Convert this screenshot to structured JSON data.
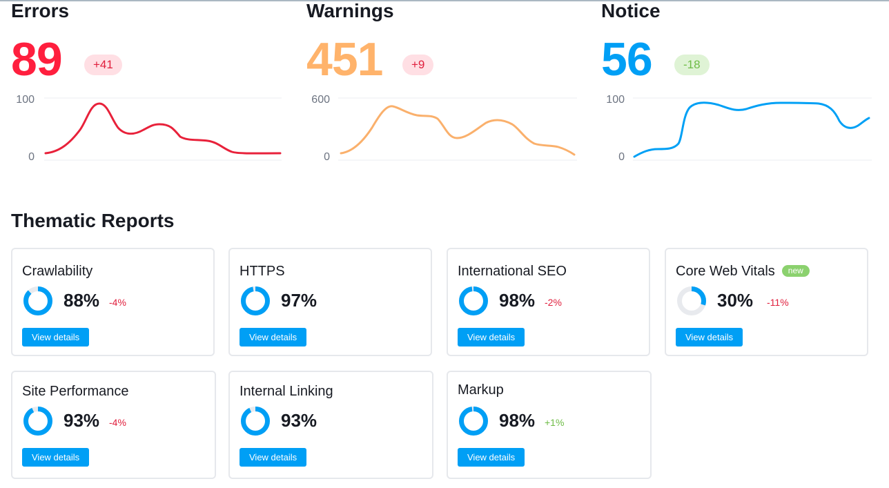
{
  "metrics": {
    "errors": {
      "title": "Errors",
      "value": "89",
      "delta": "+41",
      "y_max": "100",
      "y_min": "0",
      "color": "#ff1f3e",
      "delta_bg": "#ffdfe4",
      "delta_color": "#e01e3c",
      "line_color": "#e8213a"
    },
    "warnings": {
      "title": "Warnings",
      "value": "451",
      "delta": "+9",
      "y_max": "600",
      "y_min": "0",
      "color": "#ffb36b",
      "delta_bg": "#ffdfe4",
      "delta_color": "#e01e3c",
      "line_color": "#fab06c"
    },
    "notice": {
      "title": "Notice",
      "value": "56",
      "delta": "-18",
      "y_max": "100",
      "y_min": "0",
      "color": "#009ff5",
      "delta_bg": "#dff3d5",
      "delta_color": "#6ebc46",
      "line_color": "#00a0f5"
    }
  },
  "thematic": {
    "title": "Thematic Reports",
    "button_label": "View details",
    "cards": [
      {
        "title": "Crawlability",
        "percent": "88%",
        "change": "-4%",
        "change_type": "negative",
        "fill": 0.88
      },
      {
        "title": "HTTPS",
        "percent": "97%",
        "change": "",
        "change_type": "none",
        "fill": 0.97
      },
      {
        "title": "International SEO",
        "percent": "98%",
        "change": "-2%",
        "change_type": "negative",
        "fill": 0.98
      },
      {
        "title": "Core Web Vitals",
        "badge": "new",
        "percent": "30%",
        "change": "-11%",
        "change_type": "negative",
        "fill": 0.3
      },
      {
        "title": "Site Performance",
        "percent": "93%",
        "change": "-4%",
        "change_type": "negative",
        "fill": 0.93
      },
      {
        "title": "Internal Linking",
        "percent": "93%",
        "change": "",
        "change_type": "none",
        "fill": 0.93
      },
      {
        "title": "Markup",
        "percent": "98%",
        "change": "+1%",
        "change_type": "positive",
        "fill": 0.98
      }
    ]
  },
  "colors": {
    "accent": "#009ff5",
    "donut_track": "#e8eaee",
    "negative": "#e01e3c",
    "positive": "#6ebc46"
  }
}
